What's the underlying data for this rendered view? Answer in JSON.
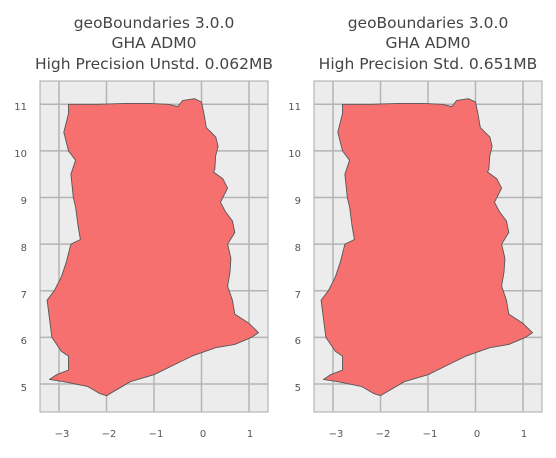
{
  "colors": {
    "background": "#ffffff",
    "axes_bg": "#ececec",
    "grid": "#b4b4b4",
    "spine": "#a8a8a8",
    "country_fill": "#f77070",
    "country_edge": "#555555",
    "text": "#444444"
  },
  "panels": [
    {
      "title_lines": [
        "geoBoundaries 3.0.0",
        "GHA ADM0",
        "High Precision Unstd. 0.062MB"
      ],
      "x_ticks": [
        "−3",
        "−2",
        "−1",
        "0",
        "1"
      ],
      "y_ticks": [
        "5",
        "6",
        "7",
        "8",
        "9",
        "10",
        "11"
      ]
    },
    {
      "title_lines": [
        "geoBoundaries 3.0.0",
        "GHA ADM0",
        "High Precision Std. 0.651MB"
      ],
      "x_ticks": [
        "−3",
        "−2",
        "−1",
        "0",
        "1"
      ],
      "y_ticks": [
        "5",
        "6",
        "7",
        "8",
        "9",
        "10",
        "11"
      ]
    }
  ],
  "geo": {
    "x_range": [
      -3.4,
      1.4
    ],
    "y_range": [
      4.4,
      11.5
    ],
    "x_tick_values": [
      -3,
      -2,
      -1,
      0,
      1
    ],
    "y_tick_values": [
      5,
      6,
      7,
      8,
      9,
      10,
      11
    ],
    "outline": [
      [
        -2.8,
        11.0
      ],
      [
        -2.2,
        11.0
      ],
      [
        -1.6,
        11.02
      ],
      [
        -1.1,
        11.02
      ],
      [
        -0.7,
        11.0
      ],
      [
        -0.5,
        10.95
      ],
      [
        -0.4,
        11.08
      ],
      [
        -0.15,
        11.12
      ],
      [
        0.0,
        11.05
      ],
      [
        0.05,
        10.8
      ],
      [
        0.1,
        10.5
      ],
      [
        0.3,
        10.3
      ],
      [
        0.35,
        10.1
      ],
      [
        0.3,
        9.9
      ],
      [
        0.28,
        9.6
      ],
      [
        0.25,
        9.55
      ],
      [
        0.45,
        9.4
      ],
      [
        0.55,
        9.2
      ],
      [
        0.4,
        8.9
      ],
      [
        0.5,
        8.7
      ],
      [
        0.65,
        8.5
      ],
      [
        0.7,
        8.25
      ],
      [
        0.55,
        8.0
      ],
      [
        0.62,
        7.7
      ],
      [
        0.6,
        7.4
      ],
      [
        0.55,
        7.1
      ],
      [
        0.65,
        6.8
      ],
      [
        0.7,
        6.5
      ],
      [
        1.0,
        6.3
      ],
      [
        1.2,
        6.1
      ],
      [
        1.05,
        6.0
      ],
      [
        0.7,
        5.85
      ],
      [
        0.3,
        5.78
      ],
      [
        -0.2,
        5.6
      ],
      [
        -0.5,
        5.45
      ],
      [
        -1.0,
        5.2
      ],
      [
        -1.5,
        5.05
      ],
      [
        -2.0,
        4.75
      ],
      [
        -2.15,
        4.8
      ],
      [
        -2.4,
        4.95
      ],
      [
        -2.9,
        5.05
      ],
      [
        -3.2,
        5.1
      ],
      [
        -3.05,
        5.2
      ],
      [
        -2.8,
        5.3
      ],
      [
        -2.8,
        5.6
      ],
      [
        -2.95,
        5.7
      ],
      [
        -3.15,
        6.0
      ],
      [
        -3.2,
        6.4
      ],
      [
        -3.25,
        6.8
      ],
      [
        -3.1,
        7.0
      ],
      [
        -2.95,
        7.3
      ],
      [
        -2.85,
        7.6
      ],
      [
        -2.75,
        8.0
      ],
      [
        -2.55,
        8.1
      ],
      [
        -2.6,
        8.4
      ],
      [
        -2.65,
        8.8
      ],
      [
        -2.7,
        9.0
      ],
      [
        -2.75,
        9.5
      ],
      [
        -2.65,
        9.8
      ],
      [
        -2.8,
        10.0
      ],
      [
        -2.9,
        10.4
      ],
      [
        -2.8,
        10.8
      ],
      [
        -2.8,
        11.0
      ]
    ]
  }
}
